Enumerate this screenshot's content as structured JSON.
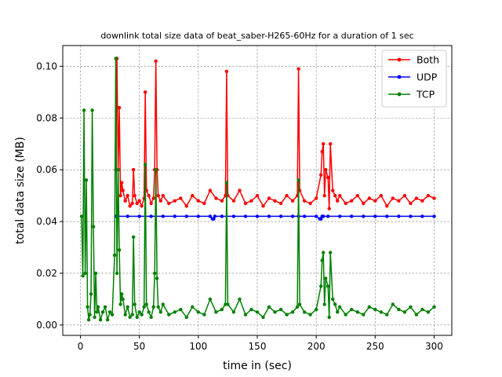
{
  "chart_data": {
    "type": "line",
    "title": "downlink total size data of beat_saber-H265-60Hz for a duration of 1 sec",
    "xlabel": "time in (sec)",
    "ylabel": "total data size (MB)",
    "xlim": [
      -15,
      315
    ],
    "ylim": [
      -0.004,
      0.108
    ],
    "xticks": [
      0,
      50,
      100,
      150,
      200,
      250,
      300
    ],
    "yticks": [
      0.0,
      0.02,
      0.04,
      0.06,
      0.08,
      0.1
    ],
    "ytick_labels": [
      "0.00",
      "0.02",
      "0.04",
      "0.06",
      "0.08",
      "0.10"
    ],
    "grid": true,
    "legend": "top-right",
    "series": [
      {
        "name": "Both",
        "color": "#ff0000",
        "x": [
          30,
          31,
          32,
          33,
          34,
          35,
          36,
          38,
          40,
          42,
          44,
          45,
          46,
          48,
          50,
          52,
          54,
          55,
          56,
          58,
          60,
          62,
          63,
          64,
          65,
          66,
          68,
          70,
          75,
          80,
          85,
          90,
          95,
          100,
          105,
          110,
          115,
          120,
          123,
          124,
          125,
          130,
          135,
          140,
          145,
          150,
          155,
          160,
          165,
          170,
          175,
          180,
          184,
          185,
          186,
          190,
          195,
          200,
          204,
          205,
          206,
          207,
          208,
          210,
          211,
          212,
          214,
          216,
          218,
          220,
          225,
          230,
          235,
          240,
          245,
          250,
          255,
          260,
          265,
          270,
          275,
          280,
          285,
          290,
          295,
          300
        ],
        "y": [
          0.06,
          0.103,
          0.06,
          0.084,
          0.05,
          0.055,
          0.052,
          0.048,
          0.05,
          0.046,
          0.047,
          0.06,
          0.05,
          0.047,
          0.048,
          0.046,
          0.049,
          0.09,
          0.052,
          0.05,
          0.047,
          0.049,
          0.06,
          0.102,
          0.06,
          0.05,
          0.048,
          0.05,
          0.047,
          0.048,
          0.049,
          0.046,
          0.05,
          0.048,
          0.047,
          0.052,
          0.049,
          0.048,
          0.05,
          0.098,
          0.05,
          0.048,
          0.052,
          0.047,
          0.048,
          0.05,
          0.046,
          0.049,
          0.048,
          0.047,
          0.05,
          0.048,
          0.05,
          0.099,
          0.052,
          0.048,
          0.047,
          0.049,
          0.058,
          0.067,
          0.07,
          0.05,
          0.06,
          0.057,
          0.045,
          0.07,
          0.052,
          0.05,
          0.048,
          0.05,
          0.047,
          0.048,
          0.05,
          0.047,
          0.049,
          0.048,
          0.05,
          0.046,
          0.049,
          0.048,
          0.05,
          0.047,
          0.049,
          0.048,
          0.05,
          0.049
        ]
      },
      {
        "name": "UDP",
        "color": "#0000ff",
        "x": [
          30,
          40,
          50,
          60,
          70,
          80,
          90,
          100,
          110,
          112,
          113,
          114,
          120,
          130,
          140,
          150,
          160,
          170,
          180,
          185,
          190,
          200,
          203,
          204,
          205,
          206,
          210,
          220,
          230,
          240,
          250,
          260,
          270,
          280,
          290,
          300
        ],
        "y": [
          0.042,
          0.042,
          0.042,
          0.042,
          0.042,
          0.042,
          0.042,
          0.042,
          0.042,
          0.041,
          0.041,
          0.042,
          0.042,
          0.042,
          0.042,
          0.042,
          0.042,
          0.042,
          0.042,
          0.042,
          0.042,
          0.042,
          0.041,
          0.041,
          0.042,
          0.042,
          0.042,
          0.042,
          0.042,
          0.042,
          0.042,
          0.042,
          0.042,
          0.042,
          0.042,
          0.042
        ]
      },
      {
        "name": "TCP",
        "color": "#008000",
        "x": [
          1,
          2,
          3,
          4,
          5,
          6,
          7,
          8,
          9,
          10,
          11,
          12,
          13,
          14,
          15,
          17,
          19,
          21,
          23,
          25,
          27,
          29,
          30,
          31,
          32,
          33,
          34,
          35,
          36,
          38,
          40,
          42,
          44,
          45,
          46,
          48,
          50,
          52,
          54,
          55,
          56,
          58,
          60,
          62,
          63,
          64,
          65,
          66,
          68,
          70,
          75,
          80,
          85,
          90,
          95,
          100,
          105,
          110,
          115,
          120,
          123,
          124,
          125,
          130,
          135,
          140,
          145,
          150,
          155,
          160,
          165,
          170,
          175,
          180,
          184,
          185,
          186,
          190,
          195,
          200,
          204,
          205,
          206,
          207,
          208,
          210,
          211,
          212,
          214,
          216,
          218,
          220,
          225,
          230,
          235,
          240,
          245,
          250,
          255,
          260,
          265,
          270,
          275,
          280,
          285,
          290,
          295,
          300
        ],
        "y": [
          0.042,
          0.019,
          0.083,
          0.02,
          0.056,
          0.007,
          0.002,
          0.004,
          0.012,
          0.083,
          0.038,
          0.003,
          0.02,
          0.005,
          0.007,
          0.002,
          0.005,
          0.007,
          0.002,
          0.005,
          0.004,
          0.027,
          0.103,
          0.02,
          0.06,
          0.029,
          0.008,
          0.012,
          0.01,
          0.004,
          0.007,
          0.003,
          0.004,
          0.034,
          0.008,
          0.003,
          0.005,
          0.004,
          0.007,
          0.062,
          0.008,
          0.005,
          0.003,
          0.007,
          0.02,
          0.06,
          0.018,
          0.007,
          0.005,
          0.008,
          0.004,
          0.005,
          0.006,
          0.003,
          0.007,
          0.005,
          0.004,
          0.01,
          0.005,
          0.006,
          0.008,
          0.055,
          0.008,
          0.005,
          0.01,
          0.004,
          0.006,
          0.005,
          0.003,
          0.007,
          0.005,
          0.006,
          0.004,
          0.005,
          0.007,
          0.056,
          0.008,
          0.005,
          0.004,
          0.006,
          0.015,
          0.025,
          0.028,
          0.008,
          0.018,
          0.015,
          0.003,
          0.028,
          0.01,
          0.008,
          0.005,
          0.007,
          0.004,
          0.006,
          0.005,
          0.004,
          0.007,
          0.006,
          0.005,
          0.004,
          0.008,
          0.006,
          0.005,
          0.007,
          0.004,
          0.006,
          0.005,
          0.007
        ]
      }
    ]
  }
}
